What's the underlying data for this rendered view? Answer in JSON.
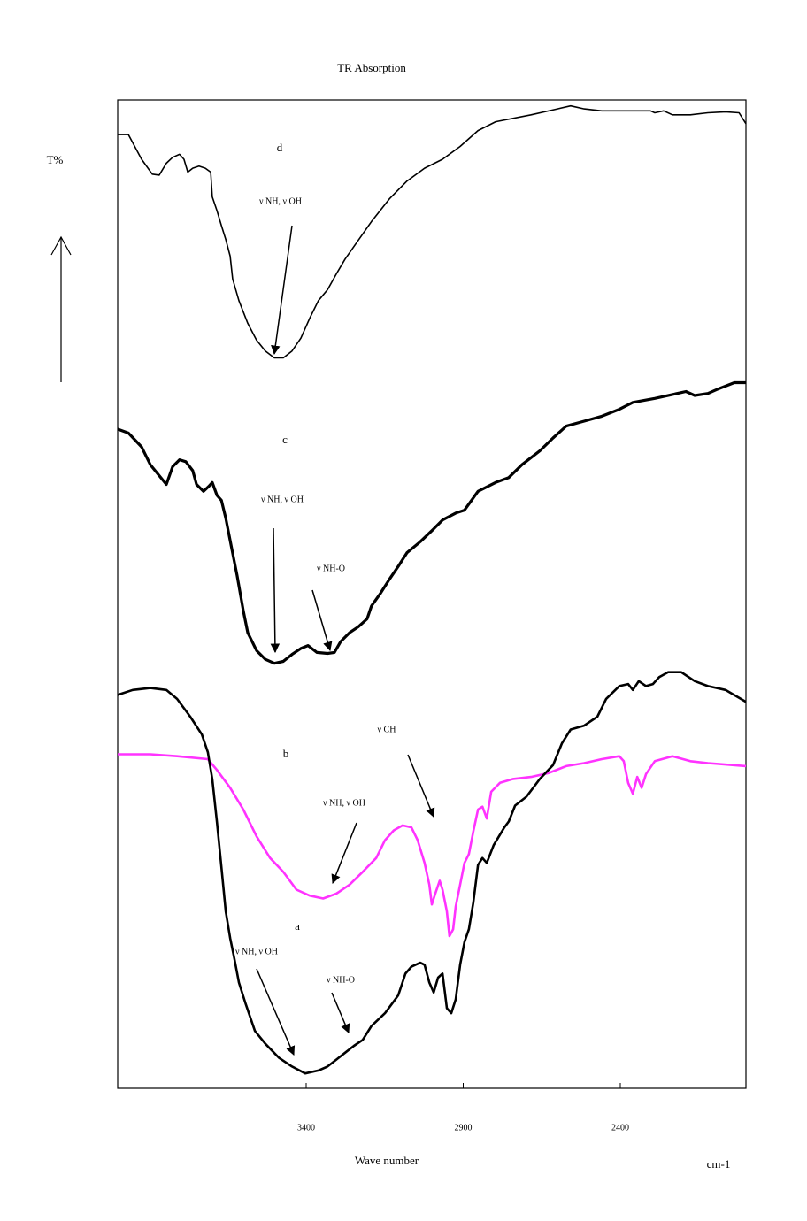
{
  "chart_data": {
    "type": "line",
    "title": "TR Absorption",
    "y_label": "T%",
    "x_label": "Wave number",
    "x_unit": "cm-1",
    "xlim": [
      4000,
      2000
    ],
    "ylim": [
      0,
      100
    ],
    "xticks": [
      3400,
      2900,
      2400
    ],
    "annotations": [
      "ν NH,  ν OH",
      "ν NH,  ν OH",
      "ν NH-O",
      "ν CH",
      "ν NH,  ν OH",
      "ν NH,  ν OH",
      "ν NH-O"
    ],
    "series": [
      {
        "name": "d",
        "color": "#000000",
        "x": [
          4000,
          3966,
          3924,
          3890,
          3868,
          3845,
          3825,
          3803,
          3789,
          3777,
          3761,
          3741,
          3721,
          3704,
          3699,
          3684,
          3670,
          3656,
          3642,
          3634,
          3614,
          3586,
          3558,
          3530,
          3501,
          3473,
          3445,
          3417,
          3389,
          3361,
          3332,
          3304,
          3276,
          3234,
          3192,
          3135,
          3079,
          3023,
          2966,
          2910,
          2853,
          2797,
          2684,
          2600,
          2558,
          2515,
          2459,
          2403,
          2304,
          2290,
          2262,
          2234,
          2177,
          2121,
          2065,
          2022,
          2000
        ],
        "values": [
          96.5,
          96.5,
          94.0,
          92.5,
          92.4,
          93.6,
          94.2,
          94.5,
          94.0,
          92.7,
          93.1,
          93.3,
          93.1,
          92.7,
          90.2,
          88.8,
          87.3,
          85.9,
          84.2,
          81.9,
          79.7,
          77.4,
          75.7,
          74.6,
          73.9,
          73.9,
          74.6,
          75.9,
          77.9,
          79.7,
          80.8,
          82.4,
          83.9,
          85.8,
          87.7,
          90.0,
          91.8,
          93.1,
          94.0,
          95.3,
          96.9,
          97.8,
          98.5,
          99.1,
          99.4,
          99.1,
          98.9,
          98.9,
          98.9,
          98.7,
          98.9,
          98.5,
          98.5,
          98.7,
          98.8,
          98.7,
          97.6
        ]
      },
      {
        "name": "c",
        "color": "#000000",
        "x": [
          4000,
          3966,
          3924,
          3896,
          3868,
          3845,
          3825,
          3803,
          3783,
          3761,
          3749,
          3727,
          3710,
          3699,
          3684,
          3670,
          3656,
          3637,
          3620,
          3600,
          3586,
          3558,
          3530,
          3501,
          3473,
          3445,
          3417,
          3394,
          3366,
          3332,
          3310,
          3290,
          3262,
          3234,
          3206,
          3192,
          3163,
          3135,
          3107,
          3079,
          3037,
          2994,
          2966,
          2924,
          2896,
          2853,
          2797,
          2755,
          2713,
          2656,
          2614,
          2572,
          2515,
          2459,
          2403,
          2360,
          2290,
          2234,
          2191,
          2163,
          2121,
          2093,
          2037,
          2000
        ],
        "values": [
          66.7,
          66.3,
          64.9,
          63.1,
          62.0,
          61.1,
          62.9,
          63.6,
          63.4,
          62.5,
          61.1,
          60.4,
          60.9,
          61.3,
          60.0,
          59.5,
          57.7,
          54.6,
          51.9,
          48.3,
          46.1,
          44.3,
          43.4,
          43.0,
          43.2,
          43.9,
          44.5,
          44.8,
          44.1,
          44.0,
          44.1,
          45.2,
          46.1,
          46.7,
          47.5,
          48.8,
          50.1,
          51.5,
          52.8,
          54.2,
          55.3,
          56.6,
          57.5,
          58.2,
          58.5,
          60.4,
          61.3,
          61.8,
          63.1,
          64.5,
          65.8,
          67.0,
          67.5,
          68.0,
          68.7,
          69.4,
          69.8,
          70.2,
          70.5,
          70.1,
          70.3,
          70.7,
          71.4,
          71.4
        ]
      },
      {
        "name": "b",
        "color": "#ff33ff",
        "x": [
          4000,
          3896,
          3811,
          3713,
          3684,
          3642,
          3600,
          3558,
          3515,
          3473,
          3431,
          3389,
          3346,
          3304,
          3262,
          3220,
          3177,
          3149,
          3121,
          3093,
          3065,
          3045,
          3023,
          3008,
          3000,
          2989,
          2975,
          2966,
          2952,
          2944,
          2932,
          2924,
          2910,
          2896,
          2882,
          2868,
          2853,
          2839,
          2825,
          2811,
          2783,
          2741,
          2684,
          2628,
          2572,
          2515,
          2459,
          2403,
          2389,
          2375,
          2360,
          2346,
          2332,
          2318,
          2290,
          2234,
          2177,
          2121,
          2000
        ],
        "values": [
          33.8,
          33.8,
          33.6,
          33.3,
          32.2,
          30.4,
          28.2,
          25.5,
          23.3,
          21.9,
          20.1,
          19.5,
          19.2,
          19.7,
          20.6,
          21.9,
          23.3,
          25.1,
          26.1,
          26.6,
          26.4,
          25.1,
          22.8,
          20.6,
          18.6,
          19.7,
          21.0,
          20.1,
          17.9,
          15.4,
          16.1,
          18.4,
          20.6,
          22.8,
          23.7,
          26.0,
          28.2,
          28.5,
          27.3,
          30.0,
          30.9,
          31.3,
          31.5,
          31.9,
          32.6,
          32.9,
          33.3,
          33.6,
          33.1,
          30.9,
          29.8,
          31.5,
          30.4,
          31.8,
          33.1,
          33.6,
          33.1,
          32.9,
          32.6
        ]
      },
      {
        "name": "a",
        "color": "#000000",
        "x": [
          4000,
          3952,
          3896,
          3845,
          3811,
          3769,
          3732,
          3713,
          3699,
          3684,
          3670,
          3656,
          3642,
          3628,
          3614,
          3592,
          3563,
          3530,
          3487,
          3445,
          3403,
          3361,
          3332,
          3304,
          3276,
          3248,
          3220,
          3192,
          3149,
          3107,
          3084,
          3065,
          3037,
          3023,
          3008,
          2994,
          2980,
          2966,
          2952,
          2938,
          2924,
          2910,
          2896,
          2882,
          2868,
          2853,
          2839,
          2825,
          2803,
          2769,
          2755,
          2735,
          2699,
          2656,
          2614,
          2586,
          2558,
          2515,
          2473,
          2445,
          2403,
          2375,
          2360,
          2341,
          2318,
          2296,
          2276,
          2248,
          2206,
          2163,
          2121,
          2065,
          2000
        ],
        "values": [
          39.8,
          40.3,
          40.5,
          40.3,
          39.4,
          37.6,
          35.8,
          34.0,
          31.3,
          26.9,
          22.4,
          17.9,
          15.2,
          13.0,
          10.7,
          8.5,
          5.8,
          4.5,
          3.1,
          2.2,
          1.5,
          1.8,
          2.2,
          2.9,
          3.6,
          4.3,
          4.9,
          6.3,
          7.6,
          9.4,
          11.6,
          12.3,
          12.7,
          12.5,
          10.7,
          9.7,
          11.2,
          11.6,
          8.1,
          7.6,
          9.0,
          12.5,
          14.8,
          16.1,
          18.8,
          22.6,
          23.3,
          22.8,
          24.6,
          26.4,
          27.0,
          28.6,
          29.5,
          31.3,
          32.7,
          34.9,
          36.3,
          36.7,
          37.6,
          39.4,
          40.7,
          40.9,
          40.3,
          41.2,
          40.7,
          40.9,
          41.6,
          42.1,
          42.1,
          41.2,
          40.7,
          40.3,
          39.1
        ]
      }
    ]
  }
}
